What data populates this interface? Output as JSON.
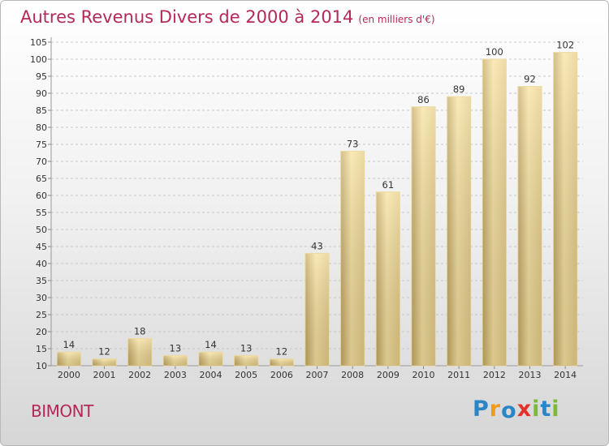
{
  "page": {
    "title": "Autres Revenus Divers de 2000 à 2014",
    "unit": "(en milliers d'€)",
    "town": "BIMONT",
    "logo": "Proxiti",
    "colors": {
      "title": "#b5285a",
      "bar_light": "#f8e3a1",
      "bar_dark": "#c5a962",
      "logo_letters": [
        "#2b86c7",
        "#f29a1a",
        "#2b86c7",
        "#e4322b",
        "#7db83a",
        "#2b86c7",
        "#7db83a"
      ]
    }
  },
  "chart_data": {
    "type": "bar",
    "title": "Autres Revenus Divers de 2000 à 2014",
    "subtitle": "(en milliers d'€)",
    "categories": [
      "2000",
      "2001",
      "2002",
      "2003",
      "2004",
      "2005",
      "2006",
      "2007",
      "2008",
      "2009",
      "2010",
      "2011",
      "2012",
      "2013",
      "2014"
    ],
    "values": [
      14,
      12,
      18,
      13,
      14,
      13,
      12,
      43,
      73,
      61,
      86,
      89,
      100,
      92,
      102
    ],
    "ylim": [
      10,
      105
    ],
    "yticks": [
      10,
      15,
      20,
      25,
      30,
      35,
      40,
      45,
      50,
      55,
      60,
      65,
      70,
      75,
      80,
      85,
      90,
      95,
      100,
      105
    ],
    "grid": "horizontal dashed",
    "data_labels": true
  }
}
